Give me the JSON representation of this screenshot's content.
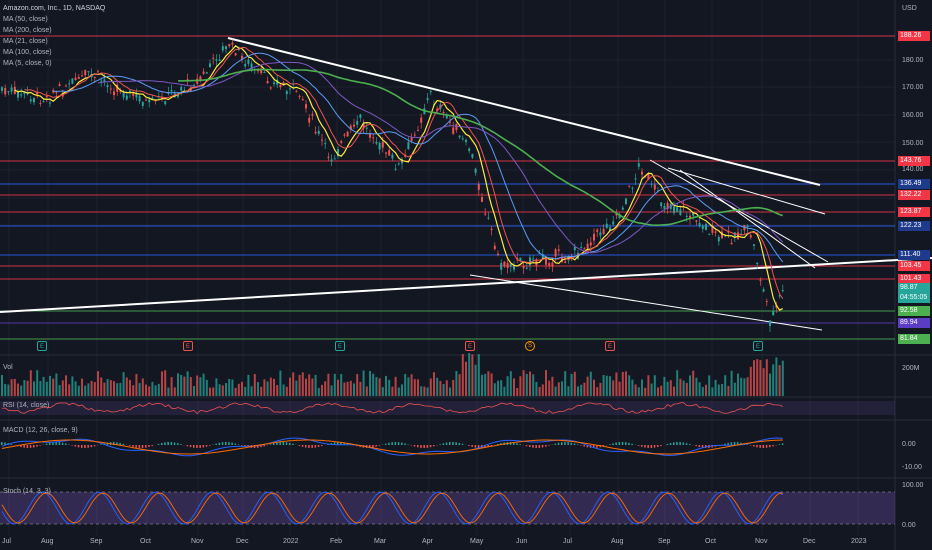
{
  "header": {
    "title": "Amazon.com, Inc., 1D, NASDAQ",
    "currency": "USD"
  },
  "indicators": [
    {
      "label": "MA (50, close)",
      "color": "#5b9cf6"
    },
    {
      "label": "MA (200, close)",
      "color": "#4caf50"
    },
    {
      "label": "MA (21, close)",
      "color": "#ef5350"
    },
    {
      "label": "MA (100, close)",
      "color": "#7e57c2"
    },
    {
      "label": "MA (5, close, 0)",
      "color": "#ffeb3b"
    }
  ],
  "price_axis": {
    "ticks": [
      "190.00",
      "180.00",
      "170.00",
      "160.00",
      "150.00",
      "140.00",
      "130.00",
      "120.00",
      "110.00"
    ]
  },
  "price_levels": [
    {
      "label": "188.26",
      "color": "#f23645"
    },
    {
      "label": "143.76",
      "color": "#f23645"
    },
    {
      "label": "136.49",
      "color": "#1e3a8a"
    },
    {
      "label": "132.22",
      "color": "#f23645"
    },
    {
      "label": "123.87",
      "color": "#f23645"
    },
    {
      "label": "122.23",
      "color": "#1e3a8a"
    },
    {
      "label": "111.40",
      "color": "#1e3a8a"
    },
    {
      "label": "103.45",
      "color": "#f23645"
    },
    {
      "label": "101.43",
      "color": "#f23645"
    },
    {
      "label": "92.58",
      "color": "#4caf50"
    },
    {
      "label": "89.94",
      "color": "#5b3cc4"
    },
    {
      "label": "81.84",
      "color": "#4caf50"
    }
  ],
  "current_price": {
    "value": "98.87",
    "countdown": "04:55:05",
    "color": "#26a69a"
  },
  "x_axis": {
    "labels": [
      "Jul",
      "Aug",
      "Sep",
      "Oct",
      "Nov",
      "Dec",
      "2022",
      "Feb",
      "Mar",
      "Apr",
      "May",
      "Jun",
      "Jul",
      "Aug",
      "Sep",
      "Oct",
      "Nov",
      "Dec",
      "2023"
    ]
  },
  "events": [
    {
      "symbol": "E",
      "kind": "earnings-up"
    },
    {
      "symbol": "E",
      "kind": "earnings-down"
    },
    {
      "symbol": "E",
      "kind": "earnings-up"
    },
    {
      "symbol": "E",
      "kind": "earnings-down"
    },
    {
      "symbol": "S",
      "kind": "split"
    },
    {
      "symbol": "E",
      "kind": "earnings-down"
    },
    {
      "symbol": "E",
      "kind": "earnings-up"
    }
  ],
  "volume_pane": {
    "label": "Vol",
    "axis": "200M"
  },
  "rsi_pane": {
    "label": "RSI (14, close)"
  },
  "macd_pane": {
    "label": "MACD (12, 26, close, 9)",
    "axis": [
      "0.00",
      "-10.00"
    ]
  },
  "stoch_pane": {
    "label": "Stoch (14, 3, 3)",
    "axis": [
      "100.00",
      "0.00"
    ]
  }
}
